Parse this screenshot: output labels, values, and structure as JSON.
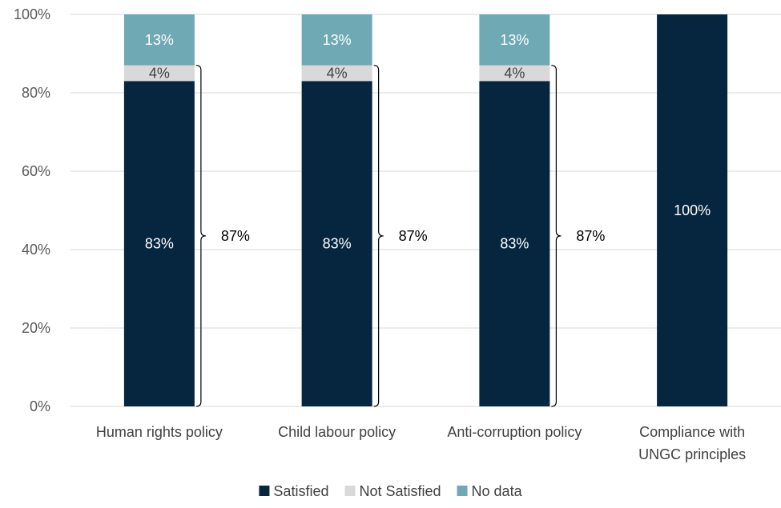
{
  "chart_data": {
    "type": "bar",
    "stacked": true,
    "categories": [
      [
        "Human rights policy"
      ],
      [
        "Child labour policy"
      ],
      [
        "Anti-corruption policy"
      ],
      [
        "Compliance with",
        "UNGC principles"
      ]
    ],
    "series": [
      {
        "name": "Satisfied",
        "color": "#06253F",
        "values": [
          83,
          83,
          83,
          100
        ],
        "labels": [
          "83%",
          "83%",
          "83%",
          "100%"
        ],
        "label_color": "#ffffff"
      },
      {
        "name": "Not Satisfied",
        "color": "#D9D9D9",
        "values": [
          4,
          4,
          4,
          0
        ],
        "labels": [
          "4%",
          "4%",
          "4%",
          ""
        ],
        "label_color": "#404040"
      },
      {
        "name": "No data",
        "color": "#6FA9B4",
        "values": [
          13,
          13,
          13,
          0
        ],
        "labels": [
          "13%",
          "13%",
          "13%",
          ""
        ],
        "label_color": "#ffffff"
      }
    ],
    "brackets": [
      {
        "category_index": 0,
        "from": 0,
        "to": 87,
        "label": "87%"
      },
      {
        "category_index": 1,
        "from": 0,
        "to": 87,
        "label": "87%"
      },
      {
        "category_index": 2,
        "from": 0,
        "to": 87,
        "label": "87%"
      }
    ],
    "yticks": [
      0,
      20,
      40,
      60,
      80,
      100
    ],
    "ytick_labels": [
      "0%",
      "20%",
      "40%",
      "60%",
      "80%",
      "100%"
    ],
    "ylim": [
      0,
      100
    ],
    "grid": true,
    "gridline_color": "#D9D9D9",
    "legend_position": "bottom",
    "title": "",
    "xlabel": "",
    "ylabel": ""
  }
}
